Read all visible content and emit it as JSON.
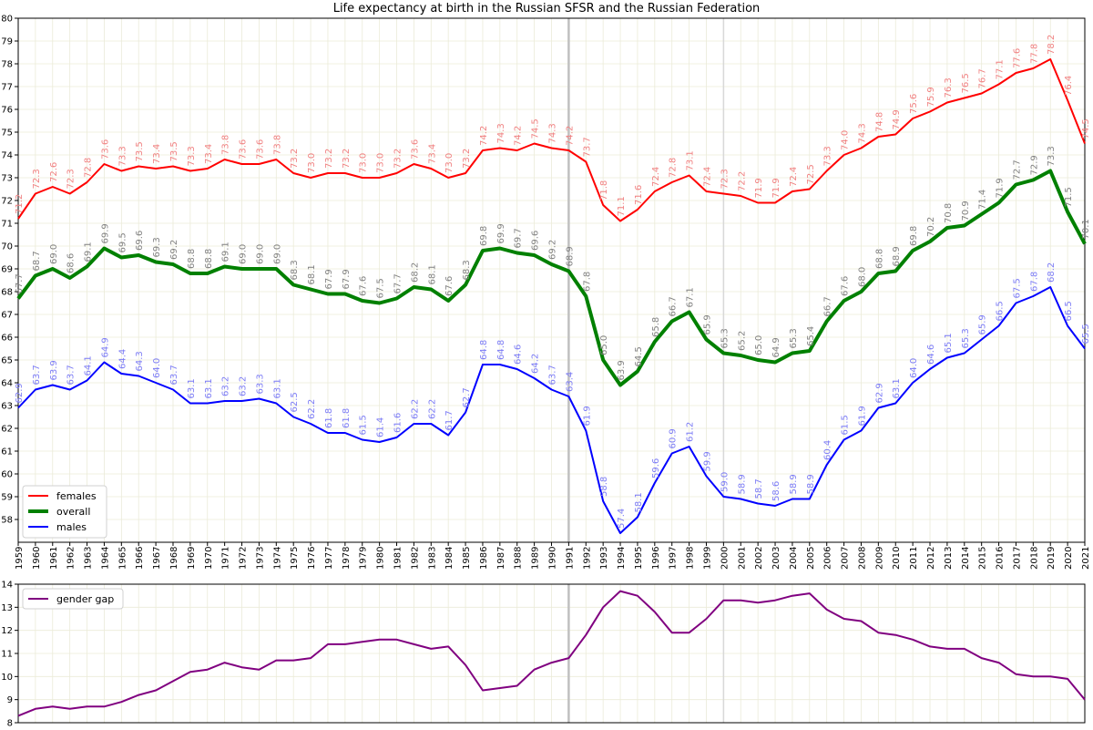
{
  "title": "Life expectancy at birth in the Russian SFSR and the Russian Federation",
  "chart_data": [
    {
      "type": "line",
      "title": "Life expectancy at birth in the Russian SFSR and the Russian Federation",
      "x": [
        1959,
        1960,
        1961,
        1962,
        1963,
        1964,
        1965,
        1966,
        1967,
        1968,
        1969,
        1970,
        1971,
        1972,
        1973,
        1974,
        1975,
        1976,
        1977,
        1978,
        1979,
        1980,
        1981,
        1982,
        1983,
        1984,
        1985,
        1986,
        1987,
        1988,
        1989,
        1990,
        1991,
        1992,
        1993,
        1994,
        1995,
        1996,
        1997,
        1998,
        1999,
        2000,
        2001,
        2002,
        2003,
        2004,
        2005,
        2006,
        2007,
        2008,
        2009,
        2010,
        2011,
        2012,
        2013,
        2014,
        2015,
        2016,
        2017,
        2018,
        2019,
        2020,
        2021
      ],
      "ylim": [
        57,
        80
      ],
      "yticks": [
        58,
        59,
        60,
        61,
        62,
        63,
        64,
        65,
        66,
        67,
        68,
        69,
        70,
        71,
        72,
        73,
        74,
        75,
        76,
        77,
        78,
        79,
        80
      ],
      "grid": true,
      "legend_position": "lower-left",
      "vertical_markers": [
        1991,
        2000
      ],
      "series": [
        {
          "name": "females",
          "color": "#ff0000",
          "label_color": "#f08080",
          "values": [
            71.2,
            72.3,
            72.6,
            72.3,
            72.8,
            73.6,
            73.3,
            73.5,
            73.4,
            73.5,
            73.3,
            73.4,
            73.8,
            73.6,
            73.6,
            73.8,
            73.2,
            73.0,
            73.2,
            73.2,
            73.0,
            73.0,
            73.2,
            73.6,
            73.4,
            73.0,
            73.2,
            74.2,
            74.3,
            74.2,
            74.5,
            74.3,
            74.2,
            73.7,
            71.8,
            71.1,
            71.6,
            72.4,
            72.8,
            73.1,
            72.4,
            72.3,
            72.2,
            71.9,
            71.9,
            72.4,
            72.5,
            73.3,
            74.0,
            74.3,
            74.8,
            74.9,
            75.6,
            75.9,
            76.3,
            76.5,
            76.7,
            77.1,
            77.6,
            77.8,
            78.2,
            76.4,
            74.5
          ]
        },
        {
          "name": "overall",
          "color": "#008000",
          "label_color": "#808080",
          "values": [
            67.7,
            68.7,
            69.0,
            68.6,
            69.1,
            69.9,
            69.5,
            69.6,
            69.3,
            69.2,
            68.8,
            68.8,
            69.1,
            69.0,
            69.0,
            69.0,
            68.3,
            68.1,
            67.9,
            67.9,
            67.6,
            67.5,
            67.7,
            68.2,
            68.1,
            67.6,
            68.3,
            69.8,
            69.9,
            69.7,
            69.6,
            69.2,
            68.9,
            67.8,
            65.0,
            63.9,
            64.5,
            65.8,
            66.7,
            67.1,
            65.9,
            65.3,
            65.2,
            65.0,
            64.9,
            65.3,
            65.4,
            66.7,
            67.6,
            68.0,
            68.8,
            68.9,
            69.8,
            70.2,
            70.8,
            70.9,
            71.4,
            71.9,
            72.7,
            72.9,
            73.3,
            71.5,
            70.1
          ]
        },
        {
          "name": "males",
          "color": "#0000ff",
          "label_color": "#7b7bf5",
          "values": [
            62.9,
            63.7,
            63.9,
            63.7,
            64.1,
            64.9,
            64.4,
            64.3,
            64.0,
            63.7,
            63.1,
            63.1,
            63.2,
            63.2,
            63.3,
            63.1,
            62.5,
            62.2,
            61.8,
            61.8,
            61.5,
            61.4,
            61.6,
            62.2,
            62.2,
            61.7,
            62.7,
            64.8,
            64.8,
            64.6,
            64.2,
            63.7,
            63.4,
            61.9,
            58.8,
            57.4,
            58.1,
            59.6,
            60.9,
            61.2,
            59.9,
            59.0,
            58.9,
            58.7,
            58.6,
            58.9,
            58.9,
            60.4,
            61.5,
            61.9,
            62.9,
            63.1,
            64.0,
            64.6,
            65.1,
            65.3,
            65.9,
            66.5,
            67.5,
            67.8,
            68.2,
            66.5,
            65.5
          ]
        }
      ]
    },
    {
      "type": "line",
      "x": [
        1959,
        1960,
        1961,
        1962,
        1963,
        1964,
        1965,
        1966,
        1967,
        1968,
        1969,
        1970,
        1971,
        1972,
        1973,
        1974,
        1975,
        1976,
        1977,
        1978,
        1979,
        1980,
        1981,
        1982,
        1983,
        1984,
        1985,
        1986,
        1987,
        1988,
        1989,
        1990,
        1991,
        1992,
        1993,
        1994,
        1995,
        1996,
        1997,
        1998,
        1999,
        2000,
        2001,
        2002,
        2003,
        2004,
        2005,
        2006,
        2007,
        2008,
        2009,
        2010,
        2011,
        2012,
        2013,
        2014,
        2015,
        2016,
        2017,
        2018,
        2019,
        2020,
        2021
      ],
      "ylim": [
        8,
        14
      ],
      "yticks": [
        8,
        9,
        10,
        11,
        12,
        13,
        14
      ],
      "grid": true,
      "legend_position": "top-left",
      "vertical_markers": [
        1991,
        2000
      ],
      "series": [
        {
          "name": "gender gap",
          "color": "#800080",
          "values": [
            8.3,
            8.6,
            8.7,
            8.6,
            8.7,
            8.7,
            8.9,
            9.2,
            9.4,
            9.8,
            10.2,
            10.3,
            10.6,
            10.4,
            10.3,
            10.7,
            10.7,
            10.8,
            11.4,
            11.4,
            11.5,
            11.6,
            11.6,
            11.4,
            11.2,
            11.3,
            10.5,
            9.4,
            9.5,
            9.6,
            10.3,
            10.6,
            10.8,
            11.8,
            13.0,
            13.7,
            13.5,
            12.8,
            11.9,
            11.9,
            12.5,
            13.3,
            13.3,
            13.2,
            13.3,
            13.5,
            13.6,
            12.9,
            12.5,
            12.4,
            11.9,
            11.8,
            11.6,
            11.3,
            11.2,
            11.2,
            10.8,
            10.6,
            10.1,
            10.0,
            10.0,
            9.9,
            9.0
          ]
        }
      ]
    }
  ]
}
